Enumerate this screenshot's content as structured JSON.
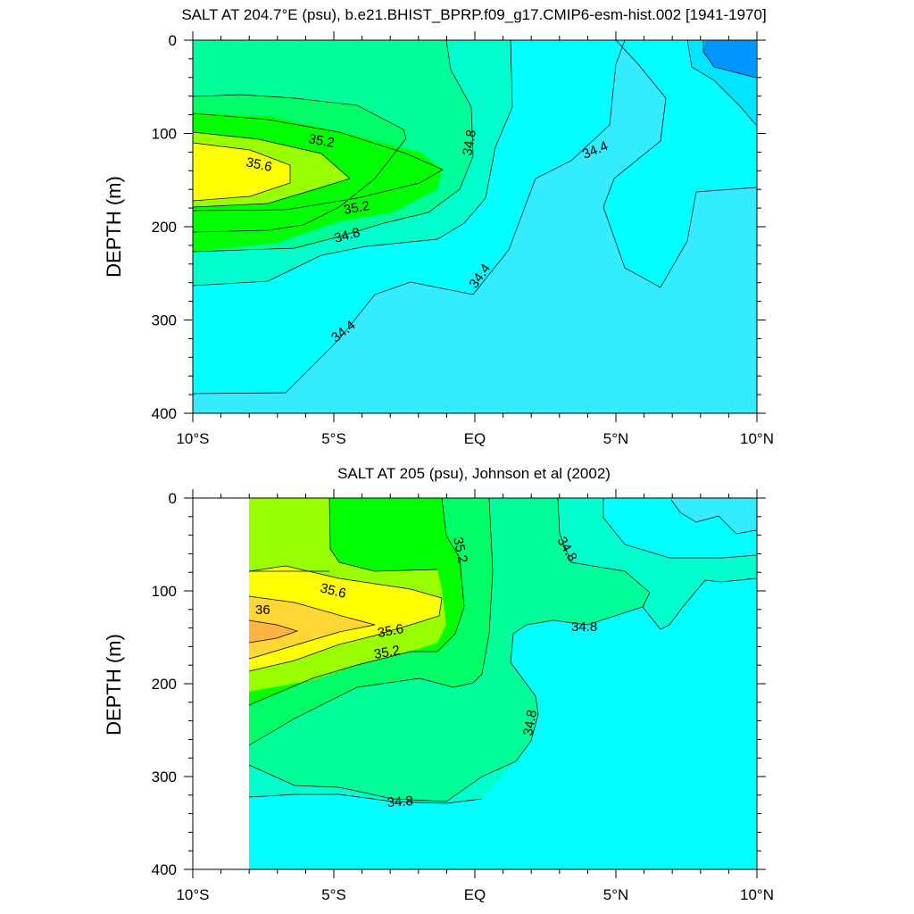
{
  "palette": {
    "c34_0": "#00e5ff",
    "c34_0_dark": "#00b4ff",
    "c34_0_darker": "#0096ff",
    "c34_4": "#33ecff",
    "c34_6": "#00ffff",
    "c34_8": "#00ffcc",
    "c35_0": "#00ff99",
    "c35_2": "#00ff66",
    "c35_4": "#00ff00",
    "c35_6": "#99ff00",
    "c35_8": "#ffff00",
    "c36_0": "#ffd633",
    "c36_2": "#ffb347",
    "white": "#ffffff"
  },
  "chart_data": [
    {
      "type": "contour",
      "title": "SALT AT 204.7°E (psu), b.e21.BHIST_BPRP.f09_g17.CMIP6-esm-hist.002 [1941-1970]",
      "xlabel": "",
      "ylabel": "DEPTH (m)",
      "xlim": [
        -10,
        10
      ],
      "ylim": [
        400,
        0
      ],
      "xticks": [
        {
          "v": -10,
          "label": "10°S"
        },
        {
          "v": -5,
          "label": "5°S"
        },
        {
          "v": 0,
          "label": "EQ"
        },
        {
          "v": 5,
          "label": "5°N"
        },
        {
          "v": 10,
          "label": "10°N"
        }
      ],
      "yticks": [
        0,
        100,
        200,
        300,
        400
      ],
      "contour_labels": [
        "35.2",
        "35.6",
        "34.8",
        "34.4",
        "35.2",
        "34.8",
        "34.4",
        "34.4"
      ],
      "contour_levels": [
        34.0,
        34.2,
        34.4,
        34.6,
        34.8,
        35.0,
        35.2,
        35.4,
        35.6
      ]
    },
    {
      "type": "contour",
      "title": "SALT AT 205 (psu), Johnson et al (2002)",
      "xlabel": "",
      "ylabel": "DEPTH (m)",
      "xlim": [
        -10,
        10
      ],
      "ylim": [
        400,
        0
      ],
      "xticks": [
        {
          "v": -10,
          "label": "10°S"
        },
        {
          "v": -5,
          "label": "5°S"
        },
        {
          "v": 0,
          "label": "EQ"
        },
        {
          "v": 5,
          "label": "5°N"
        },
        {
          "v": 10,
          "label": "10°N"
        }
      ],
      "yticks": [
        0,
        100,
        200,
        300,
        400
      ],
      "data_x_range": [
        -8,
        10
      ],
      "contour_labels": [
        "35.2",
        "34.8",
        "35.6",
        "36",
        "35.6",
        "35.2",
        "34.8",
        "34.8",
        "34.8"
      ],
      "contour_levels": [
        34.6,
        34.8,
        35.0,
        35.2,
        35.4,
        35.6,
        35.8,
        36.0
      ]
    }
  ]
}
